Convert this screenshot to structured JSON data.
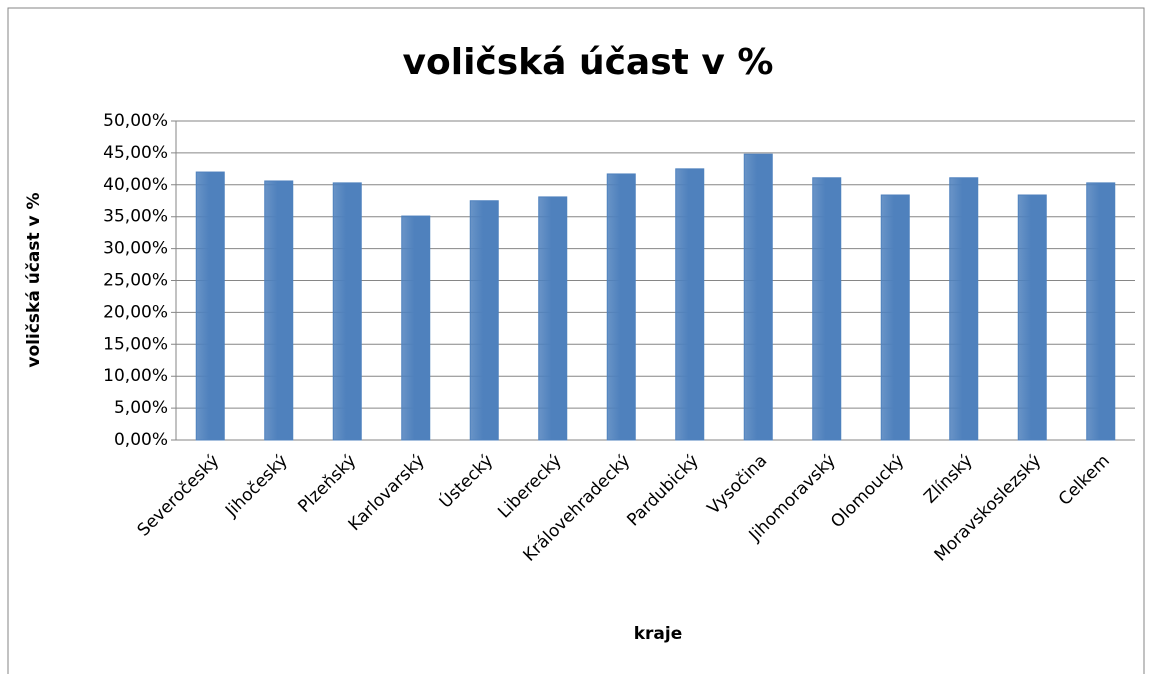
{
  "chart_data": {
    "type": "bar",
    "title": "voličská účast v %",
    "x_label": "kraje",
    "y_label": "voličská účast v %",
    "categories": [
      "Severočeský",
      "Jihočeský",
      "Plzeňský",
      "Karlovarský",
      "Ústecký",
      "Liberecký",
      "Královehradecký",
      "Pardubický",
      "Vysočina",
      "Jihomoravský",
      "Olomoucký",
      "Zlínský",
      "Moravskoslezský",
      "Celkem"
    ],
    "values": [
      42.0,
      40.6,
      40.3,
      35.1,
      37.5,
      38.1,
      41.7,
      42.5,
      44.8,
      41.1,
      38.4,
      41.1,
      38.4,
      40.3
    ],
    "color": "#4f81bd",
    "ylim": [
      0,
      50
    ],
    "yticks": [
      {
        "value": 0,
        "label": "0,00%"
      },
      {
        "value": 5,
        "label": "5,00%"
      },
      {
        "value": 10,
        "label": "10,00%"
      },
      {
        "value": 15,
        "label": "15,00%"
      },
      {
        "value": 20,
        "label": "20,00%"
      },
      {
        "value": 25,
        "label": "25,00%"
      },
      {
        "value": 30,
        "label": "30,00%"
      },
      {
        "value": 35,
        "label": "35,00%"
      },
      {
        "value": 40,
        "label": "40,00%"
      },
      {
        "value": 45,
        "label": "45,00%"
      },
      {
        "value": 50,
        "label": "50,00%"
      }
    ],
    "grid": true
  }
}
